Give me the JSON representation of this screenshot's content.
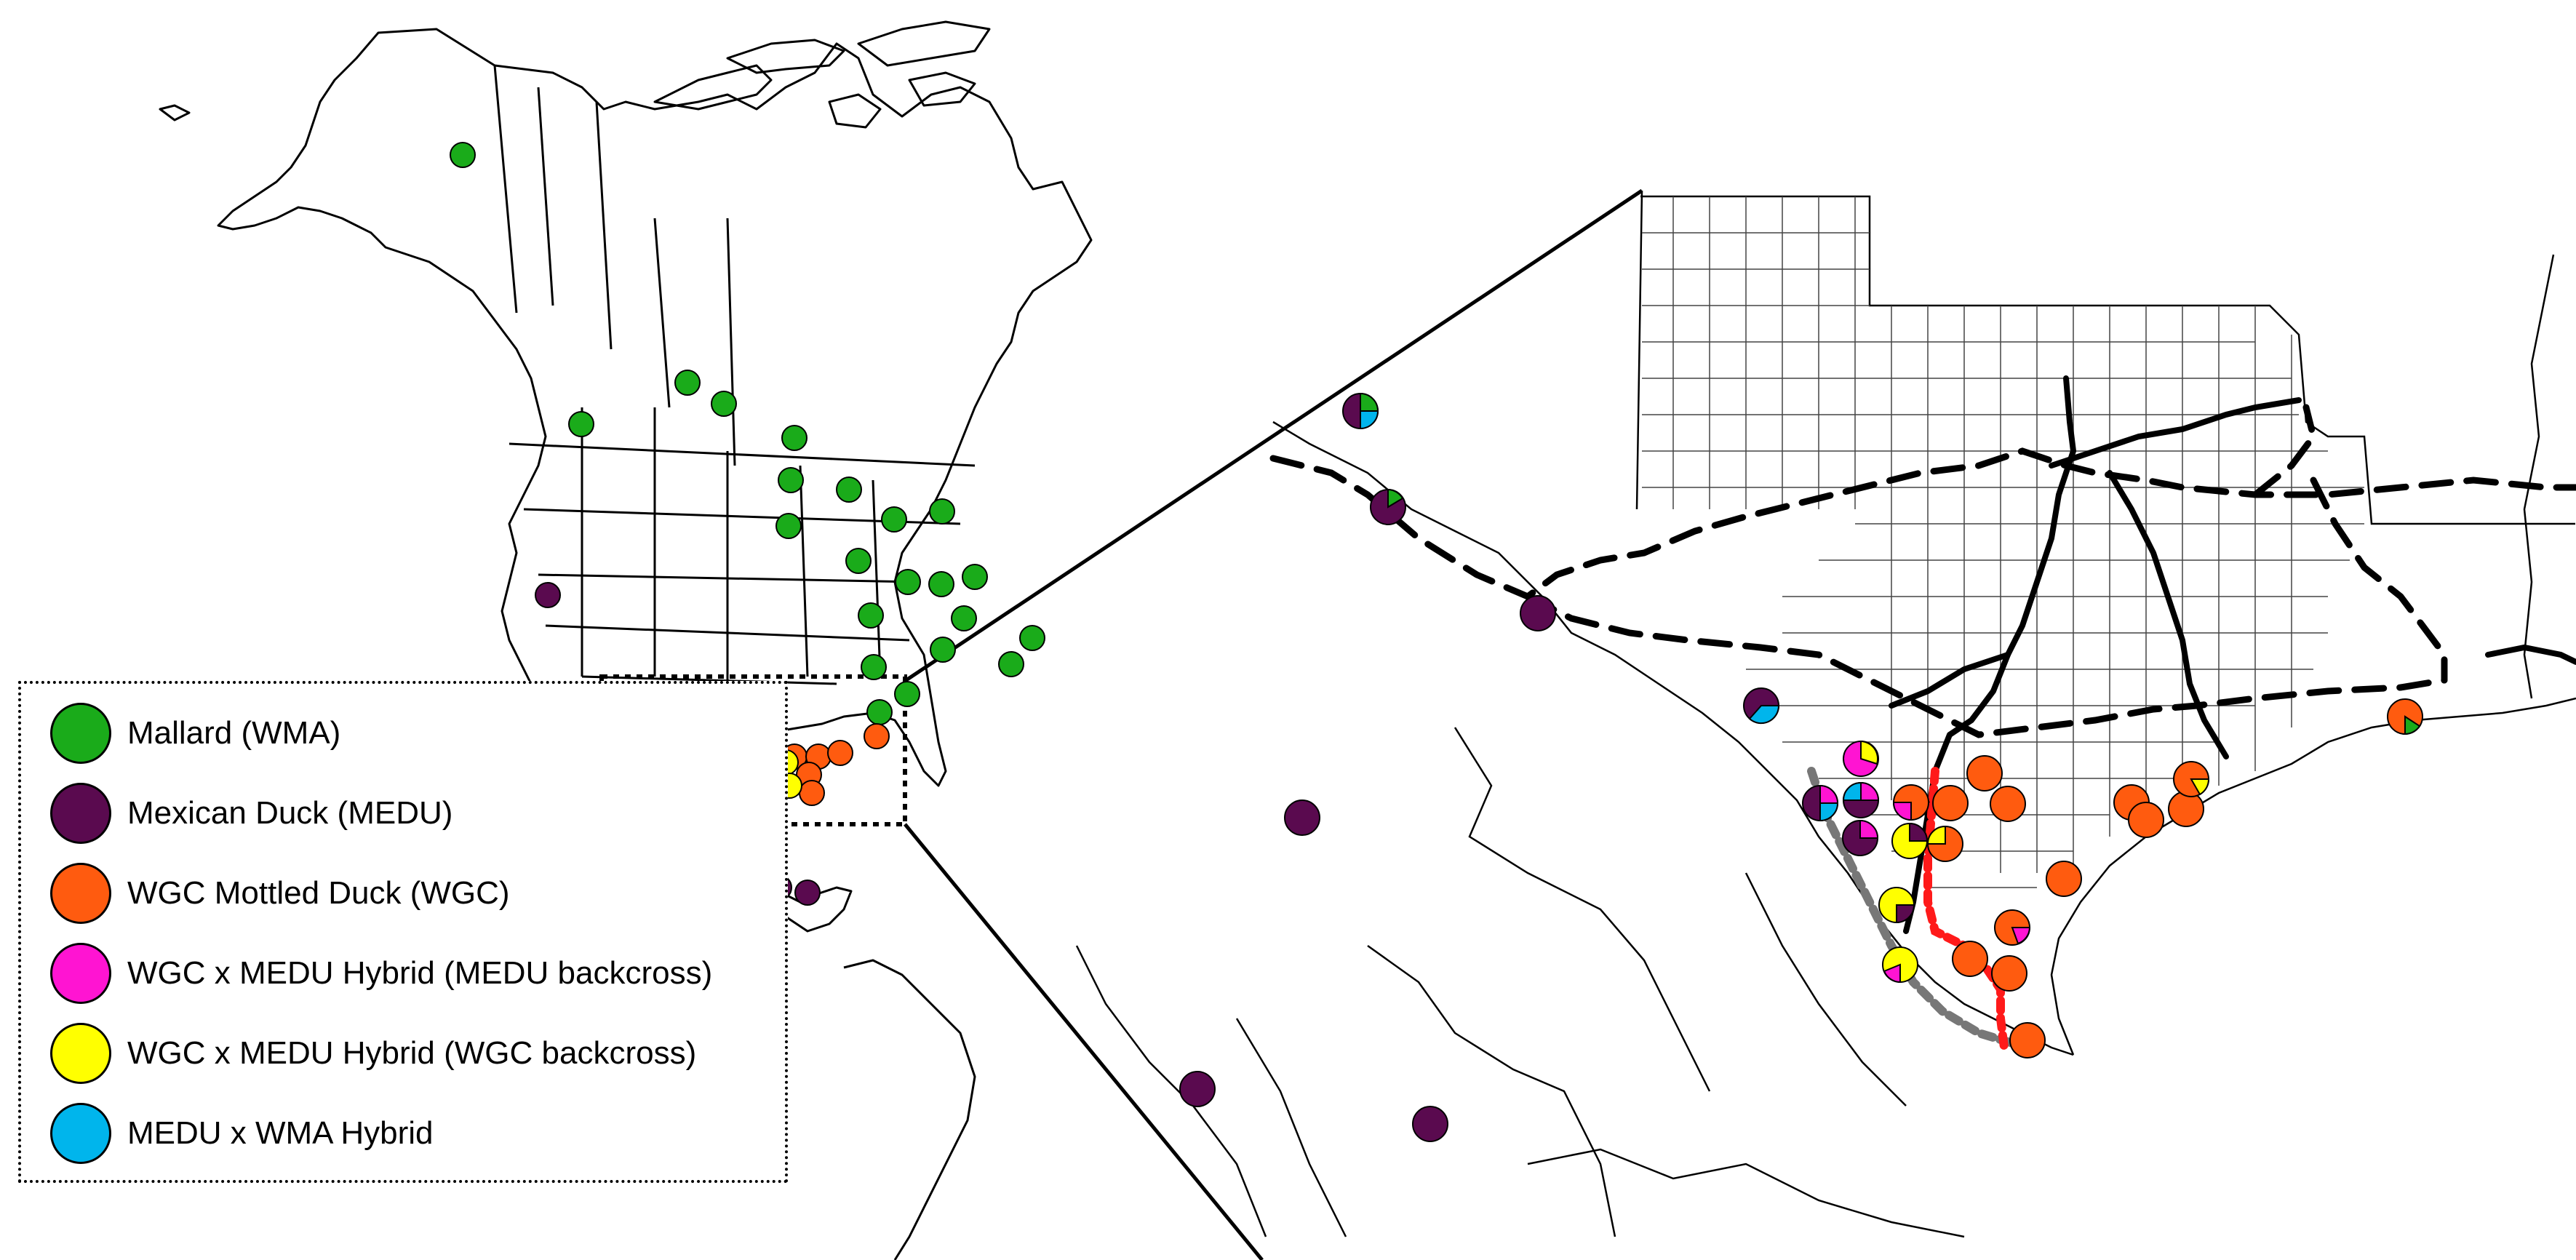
{
  "legend": {
    "items": [
      {
        "label": "Mallard (WMA)",
        "color": "#1aab1a"
      },
      {
        "label": "Mexican Duck (MEDU)",
        "color": "#5a0a4f"
      },
      {
        "label": "WGC Mottled Duck (WGC)",
        "color": "#ff5b0f"
      },
      {
        "label": "WGC x MEDU Hybrid (MEDU backcross)",
        "color": "#ff14d2"
      },
      {
        "label": "WGC x MEDU Hybrid (WGC backcross)",
        "color": "#ffff00"
      },
      {
        "label": "MEDU x WMA Hybrid",
        "color": "#00b5ec"
      }
    ]
  }
}
